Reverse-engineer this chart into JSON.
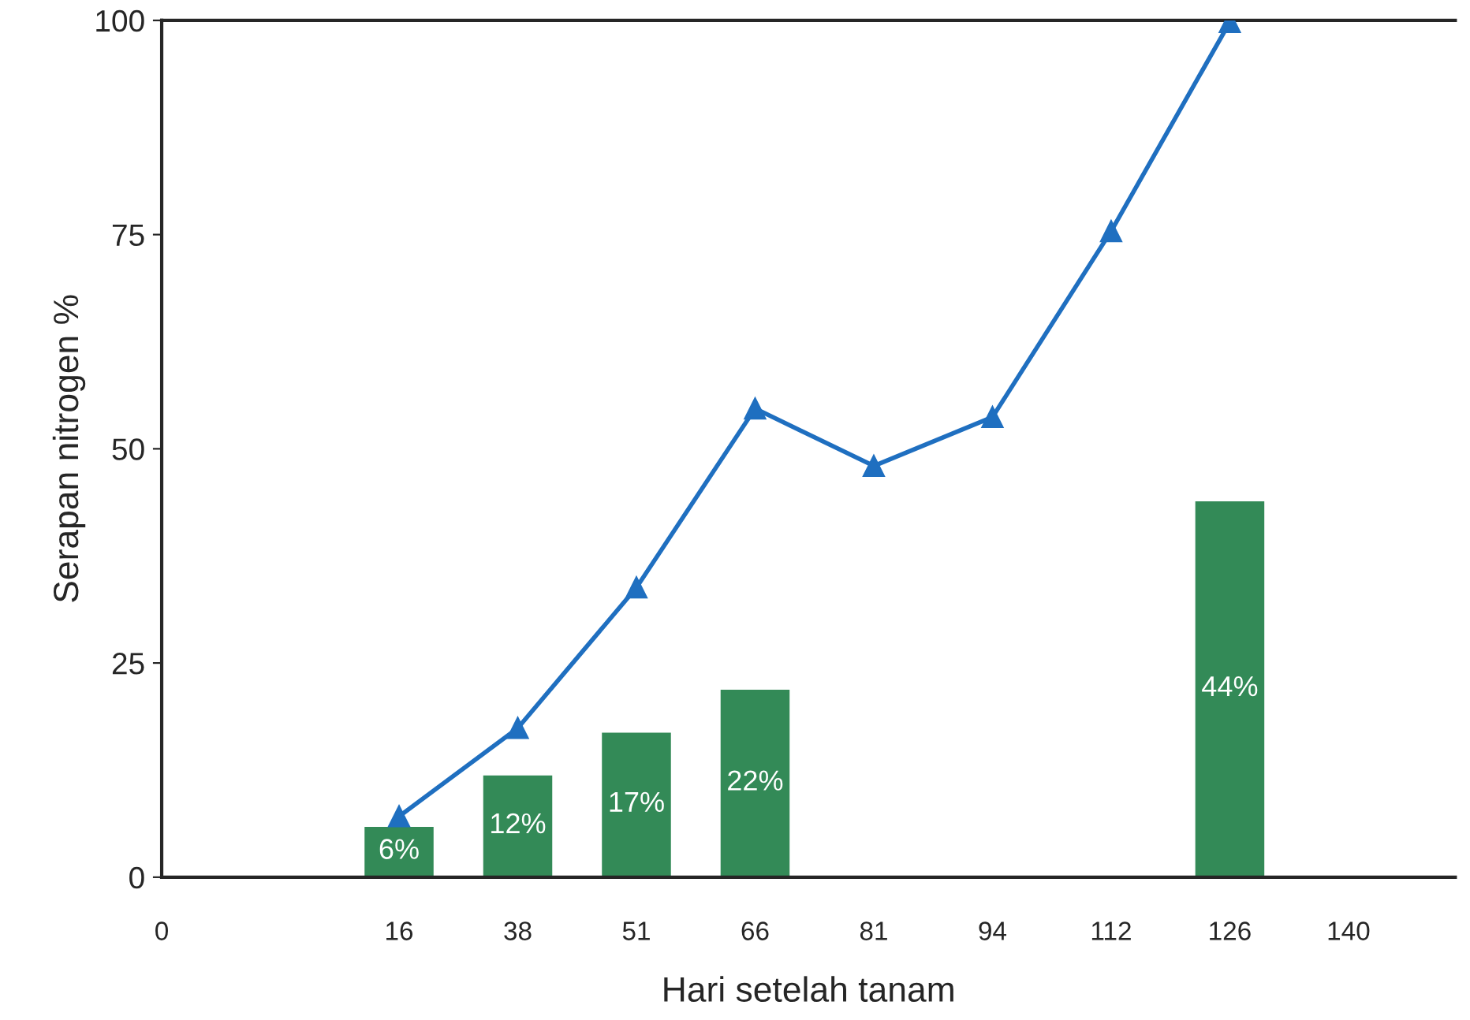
{
  "chart_data": {
    "type": "bar",
    "xlabel": "Hari setelah tanam",
    "ylabel": "Serapan nitrogen %",
    "categories": [
      "0",
      null,
      "16",
      "38",
      "51",
      "66",
      "81",
      "94",
      "112",
      "126",
      "140"
    ],
    "ylim": [
      0,
      100
    ],
    "yticks": [
      0,
      25,
      50,
      75,
      100
    ],
    "series": [
      {
        "color": "#338a57",
        "values": [
          null,
          null,
          6,
          12,
          17,
          22,
          null,
          null,
          null,
          44,
          null
        ],
        "value_labels": [
          null,
          null,
          "6%",
          "12%",
          "17%",
          "22%",
          null,
          null,
          null,
          "44%",
          null
        ]
      },
      {
        "type": "line",
        "color": "#1f6fc0",
        "marker": "triangle",
        "line_style": "solid",
        "values": [
          null,
          null,
          7.1,
          17.4,
          33.8,
          54.7,
          48,
          53.7,
          75.4,
          99.8,
          null
        ]
      }
    ],
    "grid": false,
    "legend": false
  }
}
